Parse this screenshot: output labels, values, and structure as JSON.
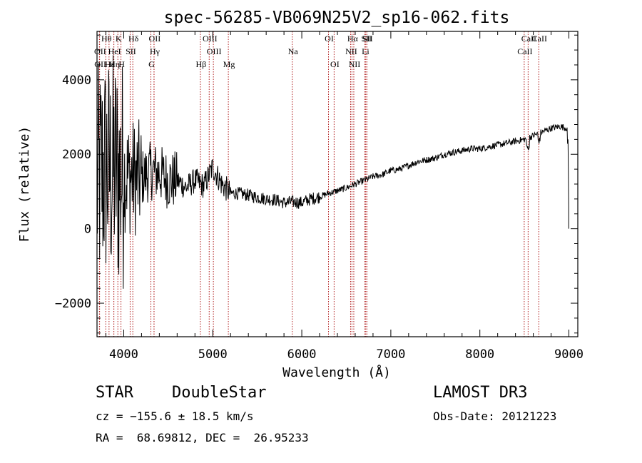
{
  "chart_data": {
    "type": "line",
    "title": "spec-56285-VB069N25V2_sp16-062.fits",
    "xlabel": "Wavelength (Å)",
    "ylabel": "Flux (relative)",
    "xlim": [
      3700,
      9100
    ],
    "ylim": [
      -2900,
      5300
    ],
    "xticks": [
      4000,
      5000,
      6000,
      7000,
      8000,
      9000
    ],
    "yticks": [
      -2000,
      0,
      2000,
      4000
    ],
    "series": [
      {
        "name": "spectrum",
        "x": [
          3700,
          3750,
          3800,
          3850,
          3900,
          3950,
          4000,
          4050,
          4100,
          4150,
          4200,
          4300,
          4400,
          4500,
          4600,
          4700,
          4800,
          4900,
          5000,
          5100,
          5200,
          5300,
          5400,
          5500,
          5600,
          5700,
          5800,
          5900,
          6000,
          6100,
          6200,
          6300,
          6400,
          6500,
          6600,
          6700,
          6800,
          6900,
          7000,
          7100,
          7200,
          7300,
          7400,
          7500,
          7600,
          7700,
          7800,
          7900,
          8000,
          8100,
          8200,
          8300,
          8400,
          8500,
          8600,
          8700,
          8800,
          8900,
          8980,
          9000
        ],
        "y": [
          1100,
          1500,
          1600,
          1500,
          1650,
          1400,
          1500,
          1400,
          1400,
          1350,
          1350,
          1550,
          1500,
          1300,
          1300,
          1100,
          1300,
          1150,
          1650,
          1200,
          950,
          950,
          900,
          850,
          800,
          780,
          700,
          720,
          700,
          800,
          860,
          950,
          1020,
          1100,
          1200,
          1300,
          1400,
          1450,
          1560,
          1600,
          1700,
          1800,
          1850,
          1900,
          2000,
          2050,
          2100,
          2150,
          2150,
          2200,
          2250,
          2300,
          2350,
          2400,
          2500,
          2600,
          2700,
          2750,
          2700,
          700
        ]
      }
    ],
    "line_markers": [
      {
        "label": "Hθ",
        "wavelength": 3798
      },
      {
        "label": "K",
        "wavelength": 3934
      },
      {
        "label": "Hδ",
        "wavelength": 4102
      },
      {
        "label": "OII",
        "wavelength": 4340
      },
      {
        "label": "OIII",
        "wavelength": 4960
      },
      {
        "label": "OI",
        "wavelength": 6300
      },
      {
        "label": "Hα",
        "wavelength": 6563
      },
      {
        "label": "SII",
        "wavelength": 6718
      },
      {
        "label": "CaII",
        "wavelength": 8542
      },
      {
        "label": "OII",
        "wavelength": 3727
      },
      {
        "label": "HeI",
        "wavelength": 3889
      },
      {
        "label": "SII",
        "wavelength": 4072
      },
      {
        "label": "Hγ",
        "wavelength": 4341
      },
      {
        "label": "OIII",
        "wavelength": 5007
      },
      {
        "label": "Na",
        "wavelength": 5893
      },
      {
        "label": "NII",
        "wavelength": 6548
      },
      {
        "label": "Li",
        "wavelength": 6708
      },
      {
        "label": "CaII",
        "wavelength": 8498
      },
      {
        "label": "OII",
        "wavelength": 3729
      },
      {
        "label": "Hε",
        "wavelength": 3835
      },
      {
        "label": "Hη",
        "wavelength": 3889
      },
      {
        "label": "H",
        "wavelength": 3969
      },
      {
        "label": "G",
        "wavelength": 4305
      },
      {
        "label": "Hβ",
        "wavelength": 4861
      },
      {
        "label": "Mg",
        "wavelength": 5175
      },
      {
        "label": "OI",
        "wavelength": 6363
      },
      {
        "label": "NII",
        "wavelength": 6584
      },
      {
        "label": "SII",
        "wavelength": 6731
      },
      {
        "label": "CaII",
        "wavelength": 8662
      }
    ]
  },
  "footer": {
    "class_label": "STAR",
    "subclass_label": "DoubleStar",
    "survey": "LAMOST DR3",
    "cz": "cz = −155.6 ± 18.5 km/s",
    "obs_date": "Obs-Date: 20121223",
    "coords": "RA =  68.69812, DEC =  26.95233"
  }
}
